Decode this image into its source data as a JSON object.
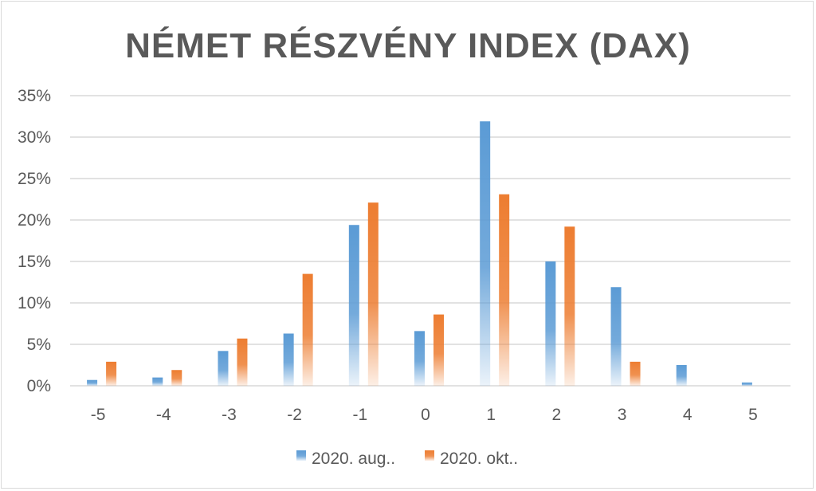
{
  "chart_data": {
    "type": "bar",
    "title": "NÉMET RÉSZVÉNY INDEX (DAX)",
    "categories": [
      "-5",
      "-4",
      "-3",
      "-2",
      "-1",
      "0",
      "1",
      "2",
      "3",
      "4",
      "5"
    ],
    "series": [
      {
        "name": "2020. aug..",
        "color": "#5b9bd5",
        "values": [
          0.7,
          1.0,
          4.2,
          6.3,
          19.4,
          6.6,
          31.9,
          15.0,
          11.9,
          2.5,
          0.4
        ]
      },
      {
        "name": "2020. okt..",
        "color": "#ed7d31",
        "values": [
          2.9,
          1.9,
          5.7,
          13.5,
          22.1,
          8.6,
          23.1,
          19.2,
          2.9,
          0,
          0
        ]
      }
    ],
    "ylim": [
      0,
      35
    ],
    "yticks": [
      "0%",
      "5%",
      "10%",
      "15%",
      "20%",
      "25%",
      "30%",
      "35%"
    ],
    "grid": true,
    "legend_position": "bottom",
    "xlabel": "",
    "ylabel": ""
  }
}
